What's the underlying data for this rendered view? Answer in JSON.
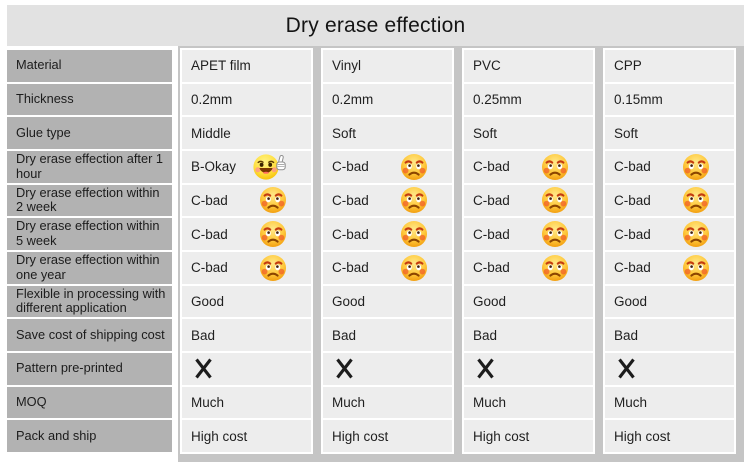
{
  "title": "Dry erase effection",
  "colors": {
    "banner_bg": "#e2e2e2",
    "label_cell_bg": "#b2b2b2",
    "data_cell_bg": "#ededed",
    "panel_bg": "#c5c5c5",
    "text": "#1f1f1f",
    "emoji_yellow": "#ffd93b",
    "emoji_orange": "#f29a0d",
    "cross_mark": "#1c1c1c"
  },
  "chart_data": {
    "type": "table",
    "title": "Dry erase effection",
    "row_labels": [
      "Material",
      "Thickness",
      "Glue type",
      "Dry erase effection after 1 hour",
      "Dry erase effection within 2 week",
      "Dry erase effection within 5 week",
      "Dry erase effection within one year",
      "Flexible in processing with different application",
      "Save cost of shipping cost",
      "Pattern pre-printed",
      "MOQ",
      "Pack and ship"
    ],
    "columns": [
      {
        "name": "APET film",
        "cells": [
          {
            "text": "APET film"
          },
          {
            "text": "0.2mm"
          },
          {
            "text": "Middle"
          },
          {
            "text": "B-Okay",
            "emoji": "smile-thumbs-up"
          },
          {
            "text": "C-bad",
            "emoji": "sad-face"
          },
          {
            "text": "C-bad",
            "emoji": "sad-face"
          },
          {
            "text": "C-bad",
            "emoji": "sad-face"
          },
          {
            "text": "Good"
          },
          {
            "text": "Bad"
          },
          {
            "mark": "cross"
          },
          {
            "text": "Much"
          },
          {
            "text": "High cost"
          }
        ]
      },
      {
        "name": "Vinyl",
        "cells": [
          {
            "text": "Vinyl"
          },
          {
            "text": "0.2mm"
          },
          {
            "text": "Soft"
          },
          {
            "text": "C-bad",
            "emoji": "sad-face"
          },
          {
            "text": "C-bad",
            "emoji": "sad-face"
          },
          {
            "text": "C-bad",
            "emoji": "sad-face"
          },
          {
            "text": "C-bad",
            "emoji": "sad-face"
          },
          {
            "text": "Good"
          },
          {
            "text": "Bad"
          },
          {
            "mark": "cross"
          },
          {
            "text": "Much"
          },
          {
            "text": "High cost"
          }
        ]
      },
      {
        "name": "PVC",
        "cells": [
          {
            "text": "PVC"
          },
          {
            "text": "0.25mm"
          },
          {
            "text": "Soft"
          },
          {
            "text": "C-bad",
            "emoji": "sad-face"
          },
          {
            "text": "C-bad",
            "emoji": "sad-face"
          },
          {
            "text": "C-bad",
            "emoji": "sad-face"
          },
          {
            "text": "C-bad",
            "emoji": "sad-face"
          },
          {
            "text": "Good"
          },
          {
            "text": "Bad"
          },
          {
            "mark": "cross"
          },
          {
            "text": "Much"
          },
          {
            "text": "High cost"
          }
        ]
      },
      {
        "name": "CPP",
        "cells": [
          {
            "text": "CPP"
          },
          {
            "text": "0.15mm"
          },
          {
            "text": "Soft"
          },
          {
            "text": "C-bad",
            "emoji": "sad-face"
          },
          {
            "text": "C-bad",
            "emoji": "sad-face"
          },
          {
            "text": "C-bad",
            "emoji": "sad-face"
          },
          {
            "text": "C-bad",
            "emoji": "sad-face"
          },
          {
            "text": "Good"
          },
          {
            "text": "Bad"
          },
          {
            "mark": "cross"
          },
          {
            "text": "Much"
          },
          {
            "text": "High cost"
          }
        ]
      }
    ]
  }
}
